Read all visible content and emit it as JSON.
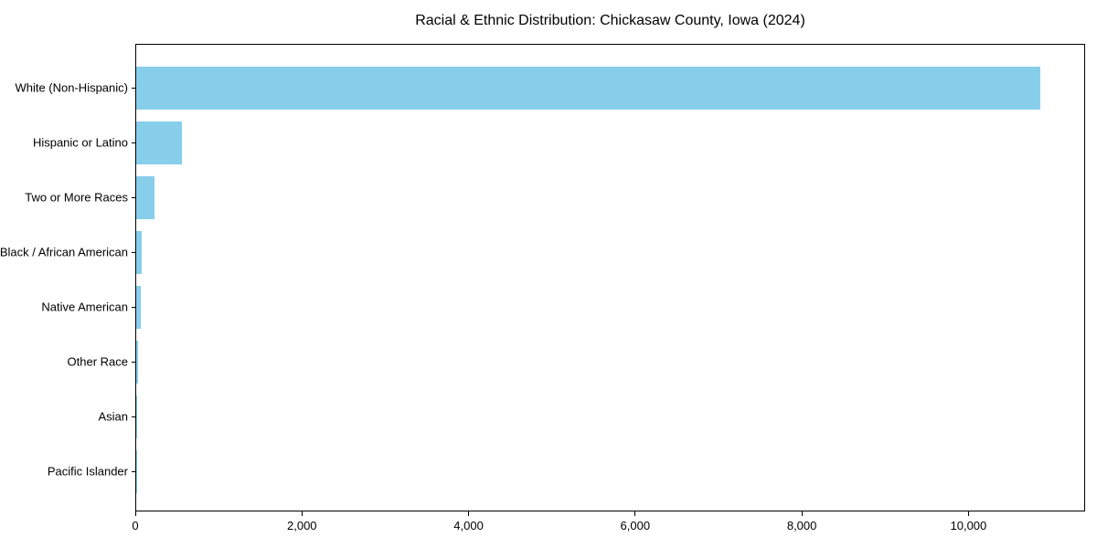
{
  "chart_data": {
    "type": "bar",
    "orientation": "horizontal",
    "title": "Racial & Ethnic Distribution: Chickasaw County, Iowa (2024)",
    "xlabel": "",
    "ylabel": "",
    "categories": [
      "White (Non-Hispanic)",
      "Hispanic or Latino",
      "Two or More Races",
      "Black / African American",
      "Native American",
      "Other Race",
      "Asian",
      "Pacific Islander"
    ],
    "values": [
      10870,
      550,
      220,
      70,
      60,
      18,
      12,
      3
    ],
    "xlim": [
      0,
      11400
    ],
    "x_ticks": [
      0,
      2000,
      4000,
      6000,
      8000,
      10000
    ],
    "x_tick_labels": [
      "0",
      "2,000",
      "4,000",
      "6,000",
      "8,000",
      "10,000"
    ],
    "bar_color": "#87CEEB",
    "axis_color": "#000000",
    "background_color": "#ffffff",
    "grid": false,
    "legend": null
  }
}
